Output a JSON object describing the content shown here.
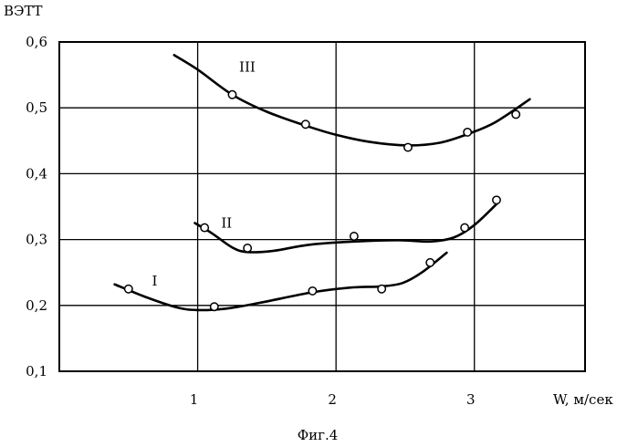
{
  "chart_data": {
    "type": "scatter",
    "title": "",
    "caption": "Фиг.4",
    "ylabel": "ВЭТТ",
    "xlabel": "W, м/сек",
    "xlim": [
      0,
      3.8
    ],
    "ylim": [
      0.1,
      0.6
    ],
    "x_ticks": [
      1,
      2,
      3
    ],
    "x_tick_labels": [
      "1",
      "2",
      "3"
    ],
    "y_ticks": [
      0.1,
      0.2,
      0.3,
      0.4,
      0.5,
      0.6
    ],
    "y_tick_labels": [
      "0,1",
      "0,2",
      "0,3",
      "0,4",
      "0,5",
      "0,6"
    ],
    "grid": true,
    "series": [
      {
        "label": "III",
        "label_at": [
          1.3,
          0.555
        ],
        "points": [
          [
            1.25,
            0.52
          ],
          [
            1.78,
            0.475
          ],
          [
            2.52,
            0.44
          ],
          [
            2.95,
            0.463
          ],
          [
            3.3,
            0.49
          ]
        ],
        "curve": [
          [
            0.83,
            0.58
          ],
          [
            1.0,
            0.558
          ],
          [
            1.25,
            0.52
          ],
          [
            1.5,
            0.494
          ],
          [
            1.78,
            0.473
          ],
          [
            2.0,
            0.459
          ],
          [
            2.25,
            0.448
          ],
          [
            2.52,
            0.443
          ],
          [
            2.75,
            0.447
          ],
          [
            2.95,
            0.46
          ],
          [
            3.15,
            0.478
          ],
          [
            3.4,
            0.513
          ]
        ]
      },
      {
        "label": "II",
        "label_at": [
          1.17,
          0.318
        ],
        "points": [
          [
            1.05,
            0.318
          ],
          [
            1.36,
            0.287
          ],
          [
            2.13,
            0.305
          ],
          [
            2.93,
            0.318
          ],
          [
            3.16,
            0.36
          ]
        ],
        "curve": [
          [
            0.98,
            0.325
          ],
          [
            1.1,
            0.31
          ],
          [
            1.25,
            0.288
          ],
          [
            1.36,
            0.281
          ],
          [
            1.55,
            0.283
          ],
          [
            1.8,
            0.292
          ],
          [
            2.13,
            0.297
          ],
          [
            2.45,
            0.299
          ],
          [
            2.68,
            0.297
          ],
          [
            2.85,
            0.303
          ],
          [
            3.0,
            0.322
          ],
          [
            3.18,
            0.358
          ]
        ]
      },
      {
        "label": "I",
        "label_at": [
          0.67,
          0.23
        ],
        "points": [
          [
            0.5,
            0.225
          ],
          [
            1.12,
            0.198
          ],
          [
            1.83,
            0.222
          ],
          [
            2.33,
            0.225
          ],
          [
            2.68,
            0.265
          ]
        ],
        "curve": [
          [
            0.4,
            0.232
          ],
          [
            0.62,
            0.213
          ],
          [
            0.85,
            0.197
          ],
          [
            1.0,
            0.193
          ],
          [
            1.2,
            0.195
          ],
          [
            1.45,
            0.204
          ],
          [
            1.83,
            0.22
          ],
          [
            2.1,
            0.227
          ],
          [
            2.33,
            0.229
          ],
          [
            2.48,
            0.234
          ],
          [
            2.62,
            0.25
          ],
          [
            2.8,
            0.28
          ]
        ]
      }
    ]
  }
}
